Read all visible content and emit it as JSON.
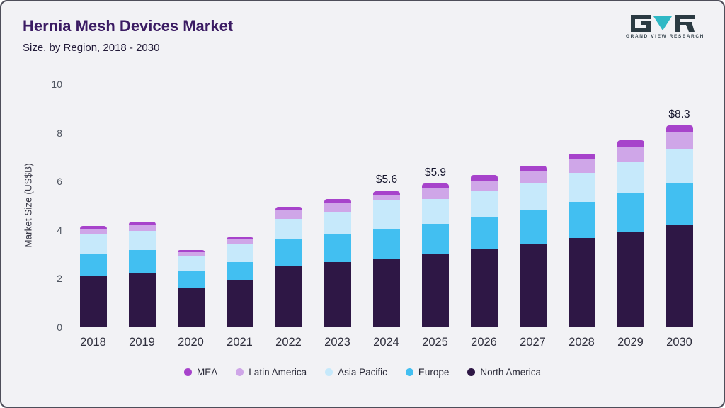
{
  "header": {
    "title": "Hernia Mesh Devices Market",
    "subtitle": "Size, by Region, 2018 - 2030",
    "logo_text": "GRAND VIEW RESEARCH"
  },
  "colors": {
    "title": "#3b1b63",
    "logo_teal": "#2fb8c5",
    "logo_dark": "#2b3a42",
    "background": "#f2f2f5"
  },
  "chart_data": {
    "type": "bar",
    "stacked": true,
    "title": "Hernia Mesh Devices Market Size, by Region, 2018 - 2030",
    "xlabel": "",
    "ylabel": "Market Size (US$B)",
    "ylim": [
      0,
      10
    ],
    "yticks": [
      0,
      2,
      4,
      6,
      8,
      10
    ],
    "grid": false,
    "legend_position": "bottom",
    "categories": [
      "2018",
      "2019",
      "2020",
      "2021",
      "2022",
      "2023",
      "2024",
      "2025",
      "2026",
      "2027",
      "2028",
      "2029",
      "2030"
    ],
    "series": [
      {
        "name": "North America",
        "color": "#2e1745",
        "values": [
          2.1,
          2.2,
          1.6,
          1.9,
          2.5,
          2.65,
          2.8,
          3.0,
          3.2,
          3.4,
          3.65,
          3.9,
          4.2
        ]
      },
      {
        "name": "Europe",
        "color": "#42bff1",
        "values": [
          0.9,
          0.95,
          0.7,
          0.75,
          1.1,
          1.15,
          1.2,
          1.25,
          1.3,
          1.4,
          1.5,
          1.6,
          1.7
        ]
      },
      {
        "name": "Asia Pacific",
        "color": "#c6e9fb",
        "values": [
          0.8,
          0.8,
          0.6,
          0.75,
          0.85,
          0.9,
          1.2,
          1.0,
          1.1,
          1.15,
          1.2,
          1.3,
          1.45
        ]
      },
      {
        "name": "Latin America",
        "color": "#cfa6e8",
        "values": [
          0.25,
          0.25,
          0.18,
          0.2,
          0.35,
          0.4,
          0.25,
          0.45,
          0.4,
          0.45,
          0.55,
          0.6,
          0.65
        ]
      },
      {
        "name": "MEA",
        "color": "#a743cb",
        "values": [
          0.1,
          0.12,
          0.08,
          0.1,
          0.15,
          0.15,
          0.15,
          0.2,
          0.25,
          0.25,
          0.25,
          0.3,
          0.3
        ]
      }
    ],
    "bar_labels": [
      "",
      "",
      "",
      "",
      "",
      "",
      "$5.6",
      "$5.9",
      "",
      "",
      "",
      "",
      "$8.3"
    ],
    "legend_order": [
      "MEA",
      "Latin America",
      "Asia Pacific",
      "Europe",
      "North America"
    ]
  }
}
